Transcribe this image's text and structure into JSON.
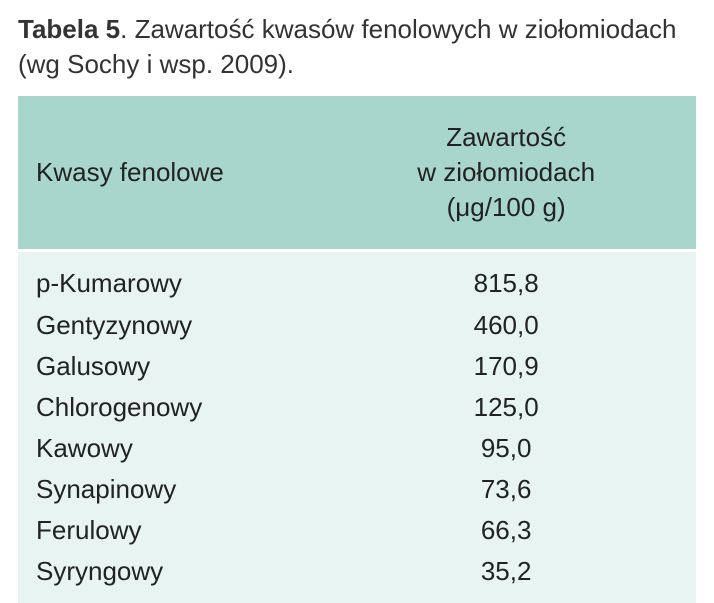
{
  "caption": {
    "label": "Tabela 5",
    "text_after_label": ". Zawartość kwasów fenolowych w ziołomiodach (wg Sochy i wsp. 2009)."
  },
  "table": {
    "type": "table",
    "header_bg_color": "#a9d6cc",
    "body_bg_color": "#e8f4f1",
    "text_color": "#222222",
    "border_color": "#ffffff",
    "font_size_pt": 20,
    "columns": [
      {
        "key": "name",
        "label": "Kwasy fenolowe",
        "align": "left"
      },
      {
        "key": "value",
        "label_line1": "Zawartość",
        "label_line2": "w ziołomiodach",
        "label_line3": "(μg/100 g)",
        "align": "center"
      }
    ],
    "rows": [
      {
        "name": "p-Kumarowy",
        "value": "815,8"
      },
      {
        "name": "Gentyzynowy",
        "value": "460,0"
      },
      {
        "name": "Galusowy",
        "value": "170,9"
      },
      {
        "name": "Chlorogenowy",
        "value": "125,0"
      },
      {
        "name": "Kawowy",
        "value": "95,0"
      },
      {
        "name": "Synapinowy",
        "value": "73,6"
      },
      {
        "name": "Ferulowy",
        "value": "66,3"
      },
      {
        "name": "Syryngowy",
        "value": "35,2"
      }
    ]
  }
}
